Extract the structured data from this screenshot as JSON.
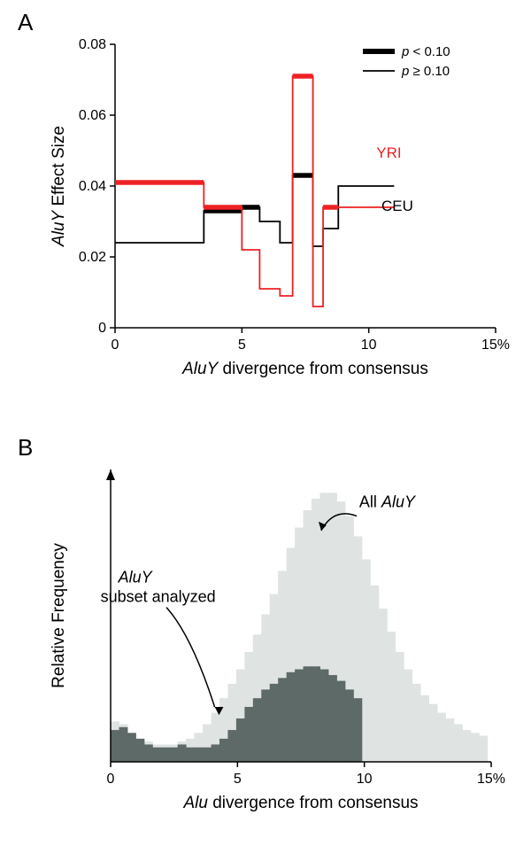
{
  "panelA": {
    "label": "A",
    "label_fontsize": 26,
    "chart": {
      "type": "step-line",
      "xlim": [
        0,
        15
      ],
      "ylim": [
        0,
        0.08
      ],
      "xtick_positions": [
        0,
        5,
        10,
        15
      ],
      "xtick_labels": [
        "0",
        "5",
        "10",
        "15%"
      ],
      "ytick_positions": [
        0,
        0.02,
        0.04,
        0.06,
        0.08
      ],
      "ytick_labels": [
        "0",
        "0.02",
        "0.04",
        "0.06",
        "0.08"
      ],
      "xlabel_prefix": "AluY",
      "xlabel_suffix": " divergence from consensus",
      "ylabel_prefix": "AluY",
      "ylabel_suffix": " Effect Size",
      "axis_fontsize": 19,
      "tick_fontsize": 16,
      "series": {
        "YRI": {
          "label": "YRI",
          "color": "#ed2224",
          "label_color": "#ed2224",
          "thin_width": 1.8,
          "thick_width": 5.5,
          "segments": [
            {
              "x0": 0,
              "x1": 3.5,
              "y": 0.041,
              "thick": true
            },
            {
              "x0": 3.5,
              "x1": 5,
              "y": 0.034,
              "thick": true
            },
            {
              "x0": 5,
              "x1": 5.7,
              "y": 0.022,
              "thick": false
            },
            {
              "x0": 5.7,
              "x1": 6.5,
              "y": 0.011,
              "thick": false
            },
            {
              "x0": 6.5,
              "x1": 7,
              "y": 0.009,
              "thick": false
            },
            {
              "x0": 7,
              "x1": 7.8,
              "y": 0.071,
              "thick": true
            },
            {
              "x0": 7.8,
              "x1": 8.2,
              "y": 0.006,
              "thick": false
            },
            {
              "x0": 8.2,
              "x1": 8.8,
              "y": 0.034,
              "thick": true
            },
            {
              "x0": 8.8,
              "x1": 11,
              "y": 0.034,
              "thick": false
            }
          ]
        },
        "CEU": {
          "label": "CEU",
          "color": "#000000",
          "label_color": "#000000",
          "thin_width": 1.8,
          "thick_width": 5.5,
          "segments": [
            {
              "x0": 0,
              "x1": 3.5,
              "y": 0.024,
              "thick": false
            },
            {
              "x0": 3.5,
              "x1": 5,
              "y": 0.033,
              "thick": true
            },
            {
              "x0": 5,
              "x1": 5.7,
              "y": 0.034,
              "thick": true
            },
            {
              "x0": 5.7,
              "x1": 6.5,
              "y": 0.03,
              "thick": false
            },
            {
              "x0": 6.5,
              "x1": 7,
              "y": 0.024,
              "thick": false
            },
            {
              "x0": 7,
              "x1": 7.8,
              "y": 0.043,
              "thick": true
            },
            {
              "x0": 7.8,
              "x1": 8.2,
              "y": 0.023,
              "thick": false
            },
            {
              "x0": 8.2,
              "x1": 8.8,
              "y": 0.028,
              "thick": false
            },
            {
              "x0": 8.8,
              "x1": 11,
              "y": 0.04,
              "thick": false
            }
          ]
        }
      },
      "legend": {
        "items": [
          {
            "label_prefix": "p",
            "label_text": " < 0.10",
            "thick": true
          },
          {
            "label_prefix": "p",
            "label_text": " ≥ 0.10",
            "thick": false
          }
        ],
        "fontsize": 15
      },
      "background_color": "#ffffff",
      "axis_color": "#000000"
    }
  },
  "panelB": {
    "label": "B",
    "label_fontsize": 26,
    "chart": {
      "type": "histogram-area",
      "xlim": [
        0,
        15
      ],
      "xtick_positions": [
        0,
        5,
        10,
        15
      ],
      "xtick_labels": [
        "0",
        "5",
        "10",
        "15%"
      ],
      "xlabel_prefix": "Alu",
      "xlabel_suffix": " divergence from consensus",
      "ylabel": "Relative Frequency",
      "axis_fontsize": 19,
      "tick_fontsize": 16,
      "bin_width": 0.33,
      "background_color": "#ffffff",
      "axis_color": "#000000",
      "series": {
        "all": {
          "color": "#dfe3e2",
          "label_prefix": "All ",
          "label_italic": "AluY",
          "values": [
            14,
            13,
            10,
            8,
            7,
            6,
            6,
            6,
            7,
            8,
            10,
            13,
            17,
            22,
            27,
            32,
            38,
            44,
            51,
            58,
            66,
            74,
            81,
            87,
            91,
            93,
            93,
            90,
            85,
            78,
            70,
            61,
            53,
            45,
            38,
            32,
            27,
            23,
            20,
            17,
            15,
            13,
            11,
            10,
            9
          ]
        },
        "subset": {
          "color": "#5d6a67",
          "label_italic": "AluY",
          "label_text_2": "subset analyzed",
          "values": [
            11,
            12,
            10,
            8,
            6,
            5,
            5,
            5,
            6,
            5,
            5,
            5,
            6,
            8,
            11,
            15,
            19,
            22,
            25,
            27,
            29,
            31,
            32,
            33,
            33,
            32,
            30,
            28,
            25,
            22,
            0,
            0,
            0,
            0,
            0,
            0,
            0,
            0,
            0,
            0,
            0,
            0,
            0,
            0,
            0
          ]
        }
      }
    }
  }
}
